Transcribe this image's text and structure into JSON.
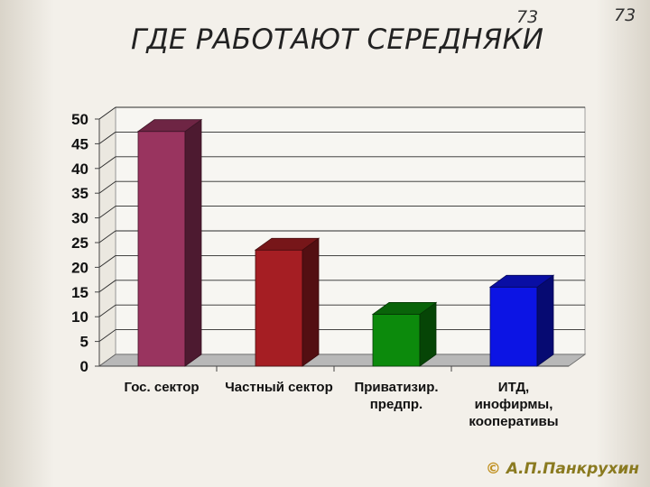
{
  "slide": {
    "title": "ГДЕ РАБОТАЮТ СЕРЕДНЯКИ",
    "page_number_1": "73",
    "page_number_2": "73",
    "copyright_symbol": "©",
    "copyright_text": "А.П.Панкрухин"
  },
  "chart_data": {
    "type": "bar",
    "title": "",
    "xlabel": "",
    "ylabel": "",
    "categories": [
      [
        "Гос. сектор"
      ],
      [
        "Частный сектор"
      ],
      [
        "Приватизир.",
        "предпр."
      ],
      [
        "ИТД,",
        "инофирмы,",
        "кооперативы"
      ]
    ],
    "values": [
      47.5,
      23.5,
      10.5,
      16
    ],
    "colors": [
      "#99345f",
      "#a51e23",
      "#0c8a0c",
      "#0c14e4"
    ],
    "ylim": [
      0,
      50
    ],
    "yticks": [
      0,
      5,
      10,
      15,
      20,
      25,
      30,
      35,
      40,
      45,
      50
    ],
    "grid": true,
    "three_d": true
  }
}
